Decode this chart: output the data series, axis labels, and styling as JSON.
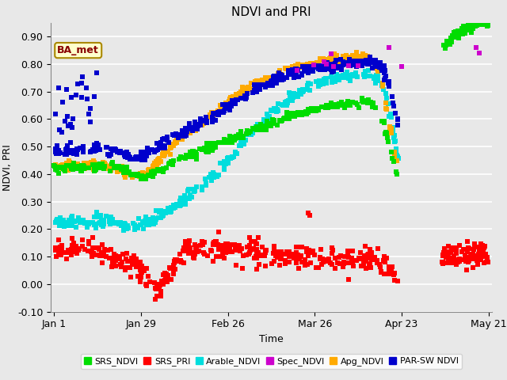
{
  "title": "NDVI and PRI",
  "xlabel": "Time",
  "ylabel": "NDVI, PRI",
  "xlim_days": [
    -1,
    141
  ],
  "ylim": [
    -0.1,
    0.95
  ],
  "yticks": [
    -0.1,
    0.0,
    0.1,
    0.2,
    0.3,
    0.4,
    0.5,
    0.6,
    0.7,
    0.8,
    0.9
  ],
  "ytick_labels": [
    "-0.10",
    "0.00",
    "0.10",
    "0.20",
    "0.30",
    "0.40",
    "0.50",
    "0.60",
    "0.70",
    "0.80",
    "0.90"
  ],
  "xtick_positions": [
    0,
    28,
    56,
    84,
    112,
    140
  ],
  "xtick_labels": [
    "Jan 1",
    "Jan 29",
    "Feb 26",
    "Mar 26",
    "Apr 23",
    "May 21"
  ],
  "annotation_text": "BA_met",
  "colors": {
    "SRS_NDVI": "#00dd00",
    "SRS_PRI": "#ff0000",
    "Arable_NDVI": "#00dddd",
    "Spec_NDVI": "#cc00cc",
    "Apg_NDVI": "#ffaa00",
    "PAR_SW_NDVI": "#0000cc"
  },
  "background_color": "#e8e8e8",
  "fig_background": "#e8e8e8",
  "grid_color": "#ffffff",
  "marker_size": 16
}
